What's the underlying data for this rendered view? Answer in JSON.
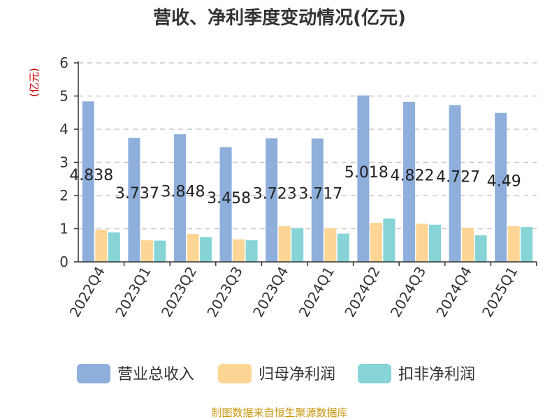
{
  "chart_data": {
    "type": "bar",
    "title": "营收、净利季度变动情况(亿元)",
    "unit_label": "(亿元)",
    "categories": [
      "2022Q4",
      "2023Q1",
      "2023Q2",
      "2023Q3",
      "2023Q4",
      "2024Q1",
      "2024Q2",
      "2024Q3",
      "2024Q4",
      "2025Q1"
    ],
    "series": [
      {
        "name": "营业总收入",
        "color": "#8eaedb",
        "values": [
          4.838,
          3.737,
          3.848,
          3.458,
          3.723,
          3.717,
          5.018,
          4.822,
          4.727,
          4.49
        ],
        "labels": [
          "4.838",
          "3.737",
          "3.848",
          "3.458",
          "3.723",
          "3.717",
          "5.018",
          "4.822",
          "4.727",
          "4.49"
        ]
      },
      {
        "name": "归母净利润",
        "color": "#fdd695",
        "values": [
          0.97,
          0.65,
          0.84,
          0.68,
          1.08,
          1.01,
          1.18,
          1.15,
          1.03,
          1.08
        ]
      },
      {
        "name": "扣非净利润",
        "color": "#86d4d6",
        "values": [
          0.89,
          0.64,
          0.75,
          0.65,
          1.02,
          0.85,
          1.31,
          1.12,
          0.8,
          1.05
        ]
      }
    ],
    "ylim": [
      0,
      6
    ],
    "yticks": [
      "0",
      "1",
      "2",
      "3",
      "4",
      "5",
      "6"
    ],
    "grid": true,
    "legend_position": "bottom"
  },
  "footer": {
    "source": "制图数据来自恒生聚源数据库"
  }
}
